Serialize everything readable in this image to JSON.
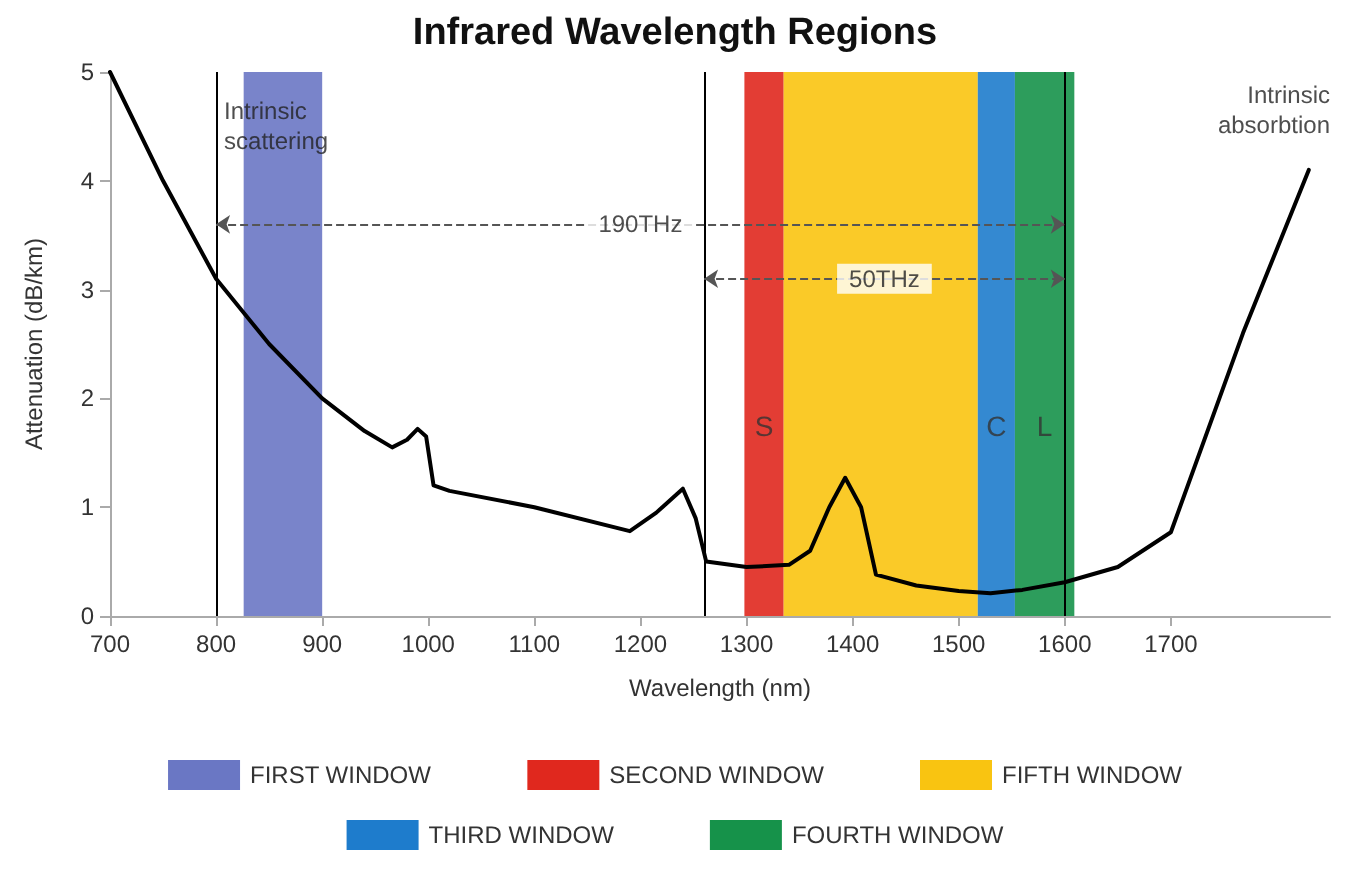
{
  "chart_data": {
    "type": "line",
    "title": "Infrared Wavelength Regions",
    "xlabel": "Wavelength (nm)",
    "ylabel": "Attenuation (dB/km)",
    "x": [
      700,
      750,
      800,
      850,
      900,
      940,
      966,
      980,
      990,
      998,
      1005,
      1020,
      1100,
      1190,
      1215,
      1240,
      1252,
      1262,
      1300,
      1340,
      1360,
      1378,
      1393,
      1408,
      1422,
      1460,
      1500,
      1530,
      1560,
      1600,
      1650,
      1700,
      1768,
      1830
    ],
    "values": [
      5.0,
      4.0,
      3.1,
      2.5,
      2.0,
      1.7,
      1.55,
      1.62,
      1.72,
      1.65,
      1.2,
      1.15,
      1.0,
      0.78,
      0.95,
      1.17,
      0.9,
      0.5,
      0.45,
      0.47,
      0.6,
      1.0,
      1.27,
      1.0,
      0.38,
      0.28,
      0.23,
      0.21,
      0.24,
      0.31,
      0.45,
      0.77,
      2.6,
      4.1
    ],
    "color": "#000000",
    "marker": "none",
    "line_style": "solid",
    "grid": false,
    "legend": "bottom",
    "xlim": [
      700,
      1850
    ],
    "xticks": [
      700,
      800,
      900,
      1000,
      1100,
      1200,
      1300,
      1400,
      1500,
      1600,
      1700
    ],
    "ylim": [
      0,
      5
    ],
    "yticks": [
      0,
      1,
      2,
      3,
      4,
      5
    ],
    "ref_lines": [
      {
        "axis": "x",
        "value": 800,
        "label": null
      },
      {
        "axis": "x",
        "value": 1260,
        "label": null
      },
      {
        "axis": "x",
        "value": 1600,
        "label": null
      }
    ],
    "bands": [
      {
        "axis": "x",
        "from": 826,
        "to": 900,
        "label": "FIRST WINDOW",
        "color": "#6a77c4"
      },
      {
        "axis": "x",
        "from": 1298,
        "to": 1335,
        "label": "SECOND WINDOW",
        "color": "#e0281e"
      },
      {
        "axis": "x",
        "from": 1335,
        "to": 1518,
        "label": "FIFTH WINDOW",
        "color": "#f9c411"
      },
      {
        "axis": "x",
        "from": 1518,
        "to": 1553,
        "label": "THIRD WINDOW",
        "color": "#1e7ccc"
      },
      {
        "axis": "x",
        "from": 1553,
        "to": 1609,
        "label": "FOURTH WINDOW",
        "color": "#16924a"
      }
    ],
    "annotations": [
      "Intrinsic scattering",
      "Intrinsic absorbtion",
      "190THz",
      "50THz",
      "S",
      "C",
      "L"
    ]
  }
}
